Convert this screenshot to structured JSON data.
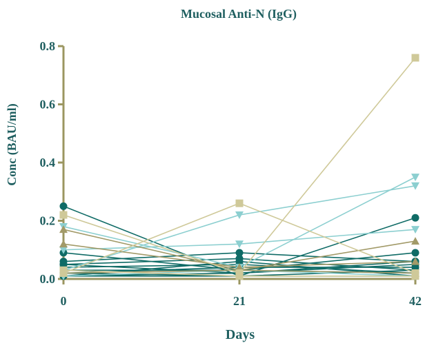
{
  "chart_data": {
    "type": "line",
    "title": "Mucosal Anti-N (IgG)",
    "xlabel": "Days",
    "ylabel": "Conc  (BAU/ml)",
    "x": [
      0,
      21,
      42
    ],
    "x_tick_labels": [
      "0",
      "21",
      "42"
    ],
    "ylim": [
      0,
      0.8
    ],
    "y_ticks": [
      0.0,
      0.2,
      0.4,
      0.6,
      0.8
    ],
    "y_tick_labels": [
      "0.0",
      "0.2",
      "0.4",
      "0.6",
      "0.8"
    ],
    "grid": false,
    "colors": {
      "axis": "#9b9660",
      "text": "#1f5f60",
      "teal_dark": "#0f6b66",
      "teal_light": "#8ccfd0",
      "khaki": "#a29a68",
      "beige": "#cfc999"
    },
    "series": [
      {
        "values": [
          0.25,
          0.01,
          0.21
        ],
        "color": "#0f6b66",
        "marker": "circle"
      },
      {
        "values": [
          0.09,
          0.03,
          0.09
        ],
        "color": "#0f6b66",
        "marker": "circle"
      },
      {
        "values": [
          0.06,
          0.09,
          0.06
        ],
        "color": "#0f6b66",
        "marker": "circle"
      },
      {
        "values": [
          0.05,
          0.07,
          0.03
        ],
        "color": "#0f6b66",
        "marker": "circle"
      },
      {
        "values": [
          0.05,
          0.02,
          0.05
        ],
        "color": "#0f6b66",
        "marker": "circle"
      },
      {
        "values": [
          0.04,
          0.05,
          0.02
        ],
        "color": "#0f6b66",
        "marker": "circle"
      },
      {
        "values": [
          0.02,
          0.04,
          0.04
        ],
        "color": "#0f6b66",
        "marker": "circle"
      },
      {
        "values": [
          0.02,
          0.01,
          0.01
        ],
        "color": "#0f6b66",
        "marker": "circle"
      },
      {
        "values": [
          0.01,
          0.06,
          0.01
        ],
        "color": "#0f6b66",
        "marker": "circle"
      },
      {
        "values": [
          0.01,
          0.01,
          0.03
        ],
        "color": "#0f6b66",
        "marker": "circle"
      },
      {
        "values": [
          0.03,
          0.03,
          0.02
        ],
        "color": "#0f6b66",
        "marker": "circle"
      },
      {
        "values": [
          0.01,
          0.02,
          0.06
        ],
        "color": "#0f6b66",
        "marker": "circle"
      },
      {
        "values": [
          0.18,
          0.04,
          0.35
        ],
        "color": "#8ccfd0",
        "marker": "triangle-down"
      },
      {
        "values": [
          0.03,
          0.22,
          0.32
        ],
        "color": "#8ccfd0",
        "marker": "triangle-down"
      },
      {
        "values": [
          0.1,
          0.12,
          0.17
        ],
        "color": "#8ccfd0",
        "marker": "triangle-down"
      },
      {
        "values": [
          0.01,
          0.03,
          0.01
        ],
        "color": "#8ccfd0",
        "marker": "triangle-down"
      },
      {
        "values": [
          0.17,
          0.03,
          0.13
        ],
        "color": "#a29a68",
        "marker": "triangle-up"
      },
      {
        "values": [
          0.12,
          0.04,
          0.06
        ],
        "color": "#a29a68",
        "marker": "triangle-up"
      },
      {
        "values": [
          0.02,
          0.03,
          0.02
        ],
        "color": "#a29a68",
        "marker": "triangle-up"
      },
      {
        "values": [
          0.22,
          0.02,
          0.76
        ],
        "color": "#cfc999",
        "marker": "square"
      },
      {
        "values": [
          0.02,
          0.26,
          0.02
        ],
        "color": "#cfc999",
        "marker": "square"
      },
      {
        "values": [
          0.03,
          0.01,
          0.01
        ],
        "color": "#cfc999",
        "marker": "square"
      }
    ]
  }
}
